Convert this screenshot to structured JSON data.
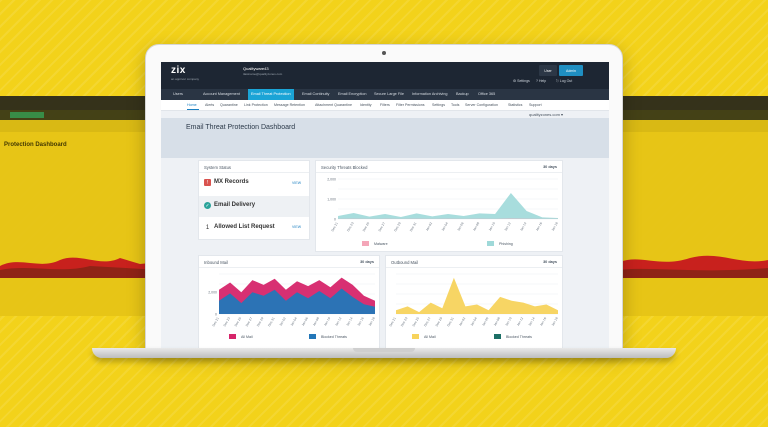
{
  "app": {
    "logo": "zix",
    "logo_sub": "an appriver company",
    "account_name": "Qualityware43",
    "account_sub": "tlastname@qualityzones.com",
    "user_btn": "User",
    "admin_btn": "Admin",
    "util": [
      "Settings",
      "Help",
      "Log Out"
    ]
  },
  "nav": [
    "Users",
    "Account Management",
    "Email Threat Protection",
    "Email Continuity",
    "Email Encryption",
    "Secure Large File",
    "Information Archiving",
    "Backup",
    "Office 365"
  ],
  "nav_active": "Email Threat Protection",
  "subnav": [
    "Home",
    "Alerts",
    "Quarantine",
    "Link Protection",
    "Message Retention",
    "Attachment Quarantine",
    "Identity",
    "Filters",
    "Filter Permissions",
    "Settings",
    "Tools",
    "Server Configuration",
    "Statistics",
    "Support"
  ],
  "domain": "qualityzones.com",
  "page_title": "Email Threat Protection Dashboard",
  "system_status": {
    "title": "System Status",
    "rows": [
      {
        "label": "MX Records",
        "action": "VIEW",
        "icon": "warning-icon",
        "color": "#d9534f"
      },
      {
        "label": "Email Delivery",
        "action": "",
        "icon": "check-icon",
        "color": "#2aa39a"
      },
      {
        "label": "Allowed List Request",
        "action": "VIEW",
        "count": "1",
        "icon": "count-icon"
      }
    ]
  },
  "security_threats": {
    "title": "Security Threats Blocked",
    "period": "30 days",
    "legend": [
      {
        "name": "Malware",
        "color": "#f4a6b8"
      },
      {
        "name": "Phishing",
        "color": "#9fd9d9"
      }
    ]
  },
  "inbound": {
    "title": "Inbound Mail",
    "period": "30 days",
    "legend": [
      {
        "name": "All Mail",
        "color": "#d6256a"
      },
      {
        "name": "Blocked Threats",
        "color": "#2377b8"
      }
    ]
  },
  "outbound": {
    "title": "Outbound Mail",
    "period": "30 days",
    "legend": [
      {
        "name": "All Mail",
        "color": "#f7d35c"
      },
      {
        "name": "Blocked Threats",
        "color": "#1c6f66"
      }
    ]
  },
  "chart_data": [
    {
      "type": "area",
      "title": "Security Threats Blocked",
      "ylim": [
        0,
        2000
      ],
      "yticks": [
        "2,000",
        "1,000",
        "0"
      ],
      "x": [
        "Dec 21",
        "Dec 23",
        "Dec 25",
        "Dec 27",
        "Dec 29",
        "Dec 31",
        "Jan 02",
        "Jan 04",
        "Jan 06",
        "Jan 08",
        "Jan 10",
        "Jan 12",
        "Jan 14",
        "Jan 16",
        "Jan 18"
      ],
      "series": [
        {
          "name": "Malware",
          "values": [
            5,
            10,
            5,
            8,
            5,
            10,
            5,
            8,
            5,
            10,
            5,
            20,
            8,
            5,
            5
          ]
        },
        {
          "name": "Phishing",
          "values": [
            150,
            300,
            120,
            250,
            100,
            280,
            130,
            250,
            150,
            280,
            250,
            1300,
            400,
            80,
            50
          ]
        }
      ]
    },
    {
      "type": "area",
      "title": "Inbound Mail",
      "yticks": [
        "2,000",
        "0"
      ],
      "x": [
        "Dec 21",
        "Dec 23",
        "Dec 25",
        "Dec 27",
        "Dec 29",
        "Dec 31",
        "Jan 02",
        "Jan 04",
        "Jan 06",
        "Jan 08",
        "Jan 10",
        "Jan 12",
        "Jan 14",
        "Jan 16",
        "Jan 18"
      ],
      "series": [
        {
          "name": "All Mail",
          "values": [
            2000,
            2600,
            1800,
            2800,
            2400,
            2900,
            2000,
            2700,
            2300,
            2800,
            2200,
            3000,
            2400,
            1500,
            1100
          ]
        },
        {
          "name": "Blocked Threats",
          "values": [
            1100,
            1700,
            900,
            1800,
            1500,
            2000,
            1100,
            1800,
            1300,
            1900,
            1300,
            2100,
            1400,
            800,
            600
          ]
        }
      ]
    },
    {
      "type": "area",
      "title": "Outbound Mail",
      "x": [
        "Dec 21",
        "Dec 23",
        "Dec 25",
        "Dec 27",
        "Dec 29",
        "Dec 31",
        "Jan 02",
        "Jan 04",
        "Jan 06",
        "Jan 08",
        "Jan 10",
        "Jan 12",
        "Jan 14",
        "Jan 16",
        "Jan 18"
      ],
      "series": [
        {
          "name": "All Mail",
          "values": [
            10,
            20,
            5,
            30,
            15,
            95,
            20,
            25,
            10,
            45,
            35,
            30,
            20,
            25,
            10
          ]
        },
        {
          "name": "Blocked Threats",
          "values": [
            0,
            0,
            0,
            0,
            0,
            0,
            0,
            0,
            0,
            0,
            0,
            0,
            0,
            0,
            0
          ]
        }
      ]
    }
  ]
}
